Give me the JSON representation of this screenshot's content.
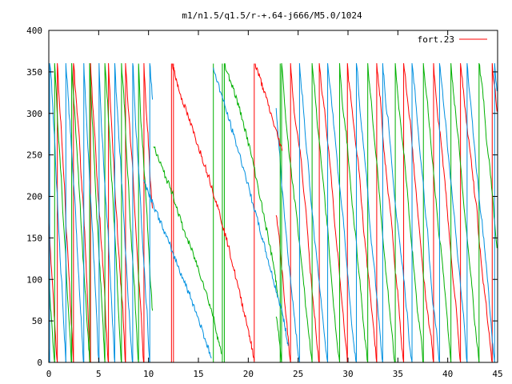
{
  "chart_data": {
    "type": "line",
    "title": "m1/n1.5/q1.5/r-+.64-j666/M5.0/1024",
    "xlabel": "",
    "ylabel": "",
    "xlim": [
      0,
      45
    ],
    "ylim": [
      0,
      400
    ],
    "x_ticks": [
      "0",
      "5",
      "10",
      "15",
      "20",
      "25",
      "30",
      "35",
      "40",
      "45"
    ],
    "y_ticks": [
      "0",
      "50",
      "100",
      "150",
      "200",
      "250",
      "300",
      "350",
      "400"
    ],
    "grid": false,
    "legend_position": "top-right",
    "legend": [
      {
        "label": "fort.23",
        "color": "#ff0000"
      }
    ],
    "series": [
      {
        "name": "fort.23",
        "color": "#ff0000",
        "style": "sawtooth-wrapping-at-360",
        "segments": [
          {
            "x": [
              12.4,
              13.0,
              14.0,
              15.0,
              16.0,
              17.0,
              18.0,
              19.0,
              20.0,
              20.6
            ],
            "y": [
              360,
              330,
              295,
              260,
              225,
              185,
              140,
              90,
              40,
              2
            ]
          },
          {
            "x": [
              20.7,
              21.5,
              22.5,
              23.4
            ],
            "y": [
              360,
              330,
              290,
              255
            ]
          }
        ]
      },
      {
        "color": "#00b000",
        "style": "sawtooth-wrapping-at-360",
        "segments": [
          {
            "x": [
              17.6,
              18.5,
              19.5,
              20.5,
              21.5,
              22.5,
              23.0
            ],
            "y": [
              360,
              330,
              290,
              240,
              180,
              120,
              80
            ]
          },
          {
            "x": [
              10.5,
              11.5,
              12.5,
              13.5,
              14.5,
              15.5,
              16.5,
              17.3
            ],
            "y": [
              260,
              230,
              200,
              160,
              130,
              95,
              55,
              10
            ]
          }
        ]
      },
      {
        "color": "#0090e0",
        "style": "sawtooth-wrapping-at-360",
        "segments": [
          {
            "x": [
              16.5,
              17.5,
              18.5,
              19.5,
              20.5,
              21.5,
              22.5,
              23.5,
              24.0
            ],
            "y": [
              355,
              315,
              275,
              235,
              190,
              145,
              100,
              55,
              20
            ]
          },
          {
            "x": [
              9.5,
              10.5,
              11.5,
              12.5,
              13.5,
              14.5,
              15.5,
              16.3
            ],
            "y": [
              220,
              190,
              160,
              130,
              100,
              70,
              35,
              5
            ]
          }
        ]
      }
    ]
  }
}
